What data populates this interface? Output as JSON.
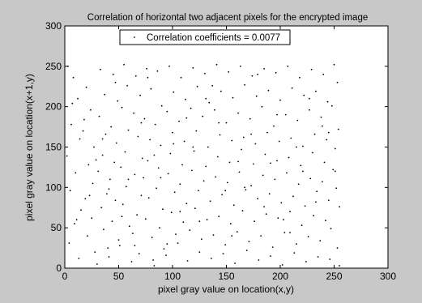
{
  "chart_data": {
    "type": "scatter",
    "title": "Correlation of horizontal two adjacent pixels for the encrypted image",
    "xlabel": "pixel gray value on location(x,y)",
    "ylabel": "pixel gray value on location(x+1,y)",
    "xlim": [
      0,
      300
    ],
    "ylim": [
      0,
      300
    ],
    "xticks": [
      "0",
      "50",
      "100",
      "150",
      "200",
      "250",
      "300"
    ],
    "yticks": [
      "0",
      "50",
      "100",
      "150",
      "200",
      "250",
      "300"
    ],
    "legend": {
      "position": "top-center",
      "label": "Correlation coefficients = 0.0077"
    },
    "grid": false,
    "point_color": "#000000",
    "plot_background": "#ffffff",
    "figure_background": "#c8c8c8",
    "points": [
      [
        3,
        250
      ],
      [
        8,
        236
      ],
      [
        12,
        210
      ],
      [
        6,
        178
      ],
      [
        14,
        160
      ],
      [
        2,
        139
      ],
      [
        10,
        118
      ],
      [
        5,
        96
      ],
      [
        15,
        72
      ],
      [
        9,
        55
      ],
      [
        4,
        31
      ],
      [
        13,
        12
      ],
      [
        20,
        224
      ],
      [
        24,
        196
      ],
      [
        18,
        184
      ],
      [
        27,
        150
      ],
      [
        22,
        128
      ],
      [
        26,
        105
      ],
      [
        19,
        86
      ],
      [
        25,
        62
      ],
      [
        21,
        40
      ],
      [
        28,
        20
      ],
      [
        33,
        246
      ],
      [
        37,
        215
      ],
      [
        32,
        188
      ],
      [
        38,
        166
      ],
      [
        35,
        140
      ],
      [
        31,
        120
      ],
      [
        39,
        92
      ],
      [
        34,
        75
      ],
      [
        36,
        48
      ],
      [
        40,
        25
      ],
      [
        30,
        5
      ],
      [
        45,
        240
      ],
      [
        49,
        207
      ],
      [
        43,
        175
      ],
      [
        48,
        155
      ],
      [
        46,
        131
      ],
      [
        42,
        110
      ],
      [
        47,
        84
      ],
      [
        44,
        58
      ],
      [
        50,
        35
      ],
      [
        41,
        14
      ],
      [
        55,
        252
      ],
      [
        58,
        226
      ],
      [
        53,
        199
      ],
      [
        59,
        171
      ],
      [
        56,
        144
      ],
      [
        52,
        125
      ],
      [
        57,
        101
      ],
      [
        54,
        79
      ],
      [
        60,
        52
      ],
      [
        51,
        28
      ],
      [
        62,
        8
      ],
      [
        66,
        238
      ],
      [
        70,
        214
      ],
      [
        64,
        192
      ],
      [
        68,
        163
      ],
      [
        72,
        136
      ],
      [
        65,
        116
      ],
      [
        71,
        90
      ],
      [
        67,
        66
      ],
      [
        63,
        43
      ],
      [
        69,
        18
      ],
      [
        76,
        247
      ],
      [
        80,
        222
      ],
      [
        74,
        185
      ],
      [
        79,
        159
      ],
      [
        77,
        133
      ],
      [
        73,
        112
      ],
      [
        78,
        87
      ],
      [
        75,
        61
      ],
      [
        81,
        38
      ],
      [
        82,
        10
      ],
      [
        86,
        244
      ],
      [
        90,
        201
      ],
      [
        84,
        178
      ],
      [
        89,
        152
      ],
      [
        87,
        124
      ],
      [
        85,
        99
      ],
      [
        91,
        73
      ],
      [
        88,
        50
      ],
      [
        92,
        24
      ],
      [
        83,
        3
      ],
      [
        97,
        250
      ],
      [
        101,
        218
      ],
      [
        95,
        194
      ],
      [
        100,
        168
      ],
      [
        98,
        142
      ],
      [
        96,
        117
      ],
      [
        102,
        94
      ],
      [
        99,
        69
      ],
      [
        103,
        42
      ],
      [
        94,
        16
      ],
      [
        108,
        236
      ],
      [
        112,
        209
      ],
      [
        106,
        182
      ],
      [
        111,
        157
      ],
      [
        109,
        128
      ],
      [
        107,
        104
      ],
      [
        113,
        80
      ],
      [
        110,
        57
      ],
      [
        105,
        31
      ],
      [
        114,
        9
      ],
      [
        119,
        248
      ],
      [
        123,
        225
      ],
      [
        117,
        198
      ],
      [
        122,
        170
      ],
      [
        120,
        145
      ],
      [
        118,
        121
      ],
      [
        124,
        96
      ],
      [
        121,
        74
      ],
      [
        116,
        47
      ],
      [
        125,
        20
      ],
      [
        130,
        241
      ],
      [
        134,
        205
      ],
      [
        128,
        188
      ],
      [
        133,
        150
      ],
      [
        131,
        126
      ],
      [
        129,
        108
      ],
      [
        135,
        83
      ],
      [
        132,
        60
      ],
      [
        127,
        36
      ],
      [
        136,
        12
      ],
      [
        141,
        252
      ],
      [
        145,
        219
      ],
      [
        139,
        196
      ],
      [
        144,
        165
      ],
      [
        142,
        138
      ],
      [
        140,
        113
      ],
      [
        146,
        91
      ],
      [
        143,
        64
      ],
      [
        138,
        41
      ],
      [
        147,
        18
      ],
      [
        152,
        243
      ],
      [
        156,
        211
      ],
      [
        150,
        180
      ],
      [
        155,
        158
      ],
      [
        153,
        131
      ],
      [
        151,
        106
      ],
      [
        157,
        78
      ],
      [
        154,
        55
      ],
      [
        149,
        29
      ],
      [
        158,
        6
      ],
      [
        163,
        250
      ],
      [
        167,
        227
      ],
      [
        161,
        192
      ],
      [
        166,
        162
      ],
      [
        164,
        147
      ],
      [
        162,
        119
      ],
      [
        168,
        97
      ],
      [
        165,
        71
      ],
      [
        160,
        45
      ],
      [
        169,
        22
      ],
      [
        174,
        238
      ],
      [
        178,
        213
      ],
      [
        172,
        185
      ],
      [
        177,
        154
      ],
      [
        175,
        129
      ],
      [
        173,
        102
      ],
      [
        179,
        86
      ],
      [
        176,
        58
      ],
      [
        171,
        33
      ],
      [
        180,
        10
      ],
      [
        185,
        247
      ],
      [
        189,
        220
      ],
      [
        183,
        200
      ],
      [
        188,
        168
      ],
      [
        186,
        141
      ],
      [
        184,
        115
      ],
      [
        190,
        92
      ],
      [
        187,
        67
      ],
      [
        182,
        40
      ],
      [
        191,
        15
      ],
      [
        196,
        242
      ],
      [
        200,
        208
      ],
      [
        194,
        176
      ],
      [
        199,
        157
      ],
      [
        197,
        133
      ],
      [
        195,
        110
      ],
      [
        201,
        81
      ],
      [
        198,
        62
      ],
      [
        193,
        26
      ],
      [
        202,
        4
      ],
      [
        207,
        250
      ],
      [
        211,
        223
      ],
      [
        205,
        190
      ],
      [
        210,
        161
      ],
      [
        208,
        137
      ],
      [
        206,
        118
      ],
      [
        212,
        89
      ],
      [
        209,
        70
      ],
      [
        204,
        44
      ],
      [
        213,
        19
      ],
      [
        218,
        236
      ],
      [
        222,
        214
      ],
      [
        216,
        183
      ],
      [
        221,
        151
      ],
      [
        219,
        127
      ],
      [
        217,
        104
      ],
      [
        223,
        77
      ],
      [
        220,
        53
      ],
      [
        215,
        30
      ],
      [
        224,
        8
      ],
      [
        229,
        246
      ],
      [
        233,
        219
      ],
      [
        227,
        196
      ],
      [
        232,
        166
      ],
      [
        230,
        143
      ],
      [
        228,
        111
      ],
      [
        234,
        95
      ],
      [
        231,
        65
      ],
      [
        226,
        39
      ],
      [
        235,
        14
      ],
      [
        240,
        240
      ],
      [
        244,
        206
      ],
      [
        238,
        187
      ],
      [
        243,
        159
      ],
      [
        241,
        131
      ],
      [
        239,
        107
      ],
      [
        245,
        84
      ],
      [
        242,
        59
      ],
      [
        237,
        34
      ],
      [
        246,
        11
      ],
      [
        250,
        252
      ],
      [
        253,
        230
      ],
      [
        248,
        201
      ],
      [
        254,
        172
      ],
      [
        251,
        148
      ],
      [
        249,
        122
      ],
      [
        252,
        99
      ],
      [
        255,
        76
      ],
      [
        247,
        49
      ],
      [
        253,
        25
      ],
      [
        255,
        3
      ],
      [
        7,
        204
      ],
      [
        17,
        170
      ],
      [
        29,
        134
      ],
      [
        41,
        98
      ],
      [
        53,
        64
      ],
      [
        65,
        28
      ],
      [
        77,
        236
      ],
      [
        89,
        112
      ],
      [
        101,
        154
      ],
      [
        113,
        186
      ],
      [
        125,
        58
      ],
      [
        137,
        226
      ],
      [
        149,
        96
      ],
      [
        161,
        132
      ],
      [
        173,
        166
      ],
      [
        185,
        76
      ],
      [
        197,
        190
      ],
      [
        209,
        44
      ],
      [
        221,
        120
      ],
      [
        233,
        82
      ],
      [
        245,
        168
      ],
      [
        11,
        60
      ],
      [
        23,
        90
      ],
      [
        35,
        160
      ],
      [
        47,
        230
      ],
      [
        59,
        110
      ],
      [
        71,
        180
      ],
      [
        83,
        140
      ],
      [
        95,
        30
      ],
      [
        107,
        70
      ],
      [
        119,
        150
      ],
      [
        131,
        210
      ],
      [
        143,
        180
      ],
      [
        155,
        40
      ],
      [
        167,
        100
      ],
      [
        179,
        240
      ],
      [
        191,
        130
      ],
      [
        203,
        60
      ],
      [
        215,
        150
      ],
      [
        227,
        210
      ],
      [
        239,
        176
      ],
      [
        251,
        120
      ]
    ]
  }
}
